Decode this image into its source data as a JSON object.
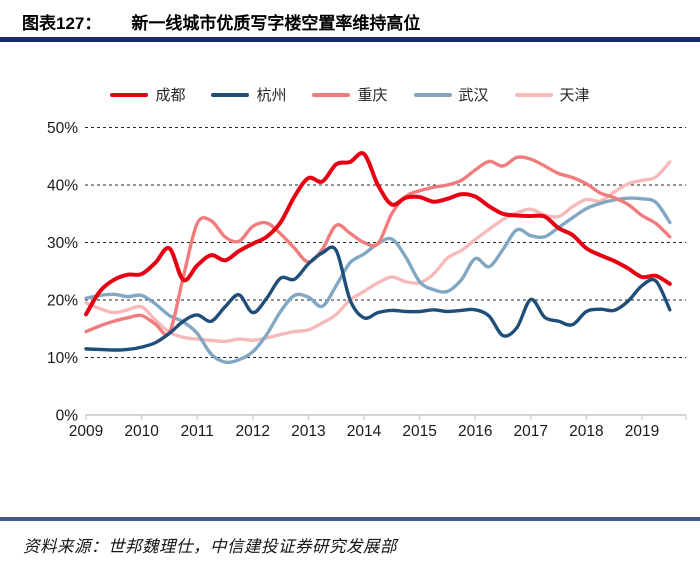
{
  "figure": {
    "label": "图表127：",
    "title": "新一线城市优质写字楼空置率维持高位",
    "source": "资料来源：世邦魏理仕，中信建投证券研究发展部"
  },
  "colors": {
    "rule_top": "#1b2a6b",
    "rule_bottom": "#47598c",
    "grid": "#262626",
    "axis": "#c9c9c9",
    "tick_text": "#1a1a1a"
  },
  "chart_data": {
    "type": "line",
    "title": "新一线城市优质写字楼空置率维持高位",
    "xlabel": "",
    "ylabel": "",
    "x_start": 2009,
    "x_step_years": 0.25,
    "x_tick_labels": [
      "2009",
      "2010",
      "2011",
      "2012",
      "2013",
      "2014",
      "2015",
      "2016",
      "2017",
      "2018",
      "2019"
    ],
    "y_tick_labels": [
      "0%",
      "10%",
      "20%",
      "30%",
      "40%",
      "50%"
    ],
    "y_tick_values": [
      0,
      10,
      20,
      30,
      40,
      50
    ],
    "ylim": [
      0,
      50
    ],
    "grid": "horizontal-dashed",
    "legend_position": "top",
    "unit": "percent",
    "series": [
      {
        "name": "成都",
        "key": "chengdu",
        "color": "#e60012",
        "width": 4,
        "values": [
          17.5,
          21.5,
          23.5,
          24.4,
          24.5,
          26.5,
          29.0,
          23.5,
          26.0,
          27.8,
          26.9,
          28.5,
          29.8,
          31.0,
          33.5,
          38.0,
          41.2,
          40.6,
          43.6,
          44.0,
          45.4,
          40.0,
          36.6,
          37.8,
          37.9,
          37.1,
          37.6,
          38.4,
          38.0,
          36.3,
          35.0,
          34.7,
          34.6,
          34.5,
          32.5,
          31.3,
          29.0,
          27.8,
          26.8,
          25.5,
          24.0,
          24.2,
          22.8
        ]
      },
      {
        "name": "杭州",
        "key": "hangzhou",
        "color": "#1f4e79",
        "width": 3.4,
        "values": [
          11.5,
          11.4,
          11.3,
          11.4,
          11.8,
          12.6,
          14.2,
          16.3,
          17.4,
          16.3,
          18.8,
          20.9,
          17.8,
          20.3,
          23.8,
          23.6,
          26.3,
          28.2,
          28.6,
          20.0,
          16.9,
          17.8,
          18.2,
          18.0,
          18.0,
          18.3,
          18.0,
          18.2,
          18.3,
          17.2,
          13.8,
          15.2,
          20.1,
          17.0,
          16.3,
          15.7,
          18.0,
          18.4,
          18.2,
          19.8,
          22.5,
          23.3,
          18.3
        ]
      },
      {
        "name": "重庆",
        "key": "chongqing",
        "color": "#f17c7e",
        "width": 3.4,
        "values": [
          14.5,
          15.5,
          16.3,
          16.9,
          17.3,
          15.8,
          14.4,
          24.0,
          33.3,
          33.8,
          31.0,
          30.2,
          32.8,
          33.4,
          31.5,
          29.0,
          26.6,
          28.8,
          33.0,
          31.6,
          30.0,
          29.8,
          35.0,
          38.0,
          39.0,
          39.6,
          40.0,
          40.8,
          42.6,
          44.1,
          43.3,
          44.8,
          44.5,
          43.3,
          42.0,
          41.3,
          40.2,
          38.6,
          37.8,
          36.6,
          34.7,
          33.3,
          31.0
        ]
      },
      {
        "name": "武汉",
        "key": "wuhan",
        "color": "#82a7c3",
        "width": 3.4,
        "values": [
          20.3,
          20.8,
          21.0,
          20.6,
          20.8,
          19.3,
          17.3,
          16.2,
          14.2,
          10.6,
          9.2,
          9.6,
          11.0,
          14.0,
          18.0,
          20.8,
          20.5,
          18.9,
          22.5,
          26.5,
          28.0,
          29.8,
          30.6,
          27.5,
          23.2,
          21.8,
          21.5,
          23.5,
          27.2,
          25.8,
          28.8,
          32.2,
          31.2,
          31.0,
          32.6,
          34.3,
          35.9,
          36.8,
          37.4,
          37.7,
          37.6,
          37.0,
          33.5
        ]
      },
      {
        "name": "天津",
        "key": "tianjin",
        "color": "#f7b9ba",
        "width": 3.4,
        "values": [
          19.5,
          18.5,
          17.8,
          18.3,
          18.8,
          16.5,
          14.4,
          13.5,
          13.2,
          13.0,
          12.8,
          13.2,
          13.0,
          13.4,
          14.0,
          14.5,
          14.8,
          16.0,
          17.5,
          20.0,
          21.5,
          23.0,
          24.0,
          23.2,
          23.0,
          24.5,
          27.3,
          28.6,
          30.5,
          32.3,
          34.0,
          35.2,
          35.8,
          34.8,
          34.5,
          36.2,
          37.5,
          37.2,
          38.8,
          40.2,
          40.8,
          41.4,
          44.0
        ]
      }
    ]
  }
}
